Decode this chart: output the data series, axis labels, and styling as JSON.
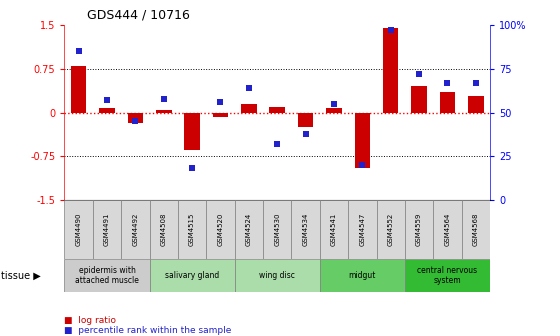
{
  "title": "GDS444 / 10716",
  "samples": [
    "GSM4490",
    "GSM4491",
    "GSM4492",
    "GSM4508",
    "GSM4515",
    "GSM4520",
    "GSM4524",
    "GSM4530",
    "GSM4534",
    "GSM4541",
    "GSM4547",
    "GSM4552",
    "GSM4559",
    "GSM4564",
    "GSM4568"
  ],
  "log_ratio": [
    0.8,
    0.07,
    -0.18,
    0.05,
    -0.65,
    -0.08,
    0.15,
    0.1,
    -0.25,
    0.07,
    -0.95,
    1.45,
    0.45,
    0.35,
    0.28
  ],
  "percentile": [
    85,
    57,
    45,
    58,
    18,
    56,
    64,
    32,
    38,
    55,
    20,
    97,
    72,
    67,
    67
  ],
  "ylim": [
    -1.5,
    1.5
  ],
  "yticks_left": [
    -1.5,
    -0.75,
    0,
    0.75,
    1.5
  ],
  "yticks_right": [
    0,
    25,
    50,
    75,
    100
  ],
  "bar_color": "#cc0000",
  "dot_color": "#2222cc",
  "tissue_groups": [
    {
      "label": "epidermis with\nattached muscle",
      "start": 0,
      "end": 3,
      "color": "#cccccc"
    },
    {
      "label": "salivary gland",
      "start": 3,
      "end": 6,
      "color": "#aaddaa"
    },
    {
      "label": "wing disc",
      "start": 6,
      "end": 9,
      "color": "#aaddaa"
    },
    {
      "label": "midgut",
      "start": 9,
      "end": 12,
      "color": "#66cc66"
    },
    {
      "label": "central nervous\nsystem",
      "start": 12,
      "end": 15,
      "color": "#33bb33"
    }
  ]
}
